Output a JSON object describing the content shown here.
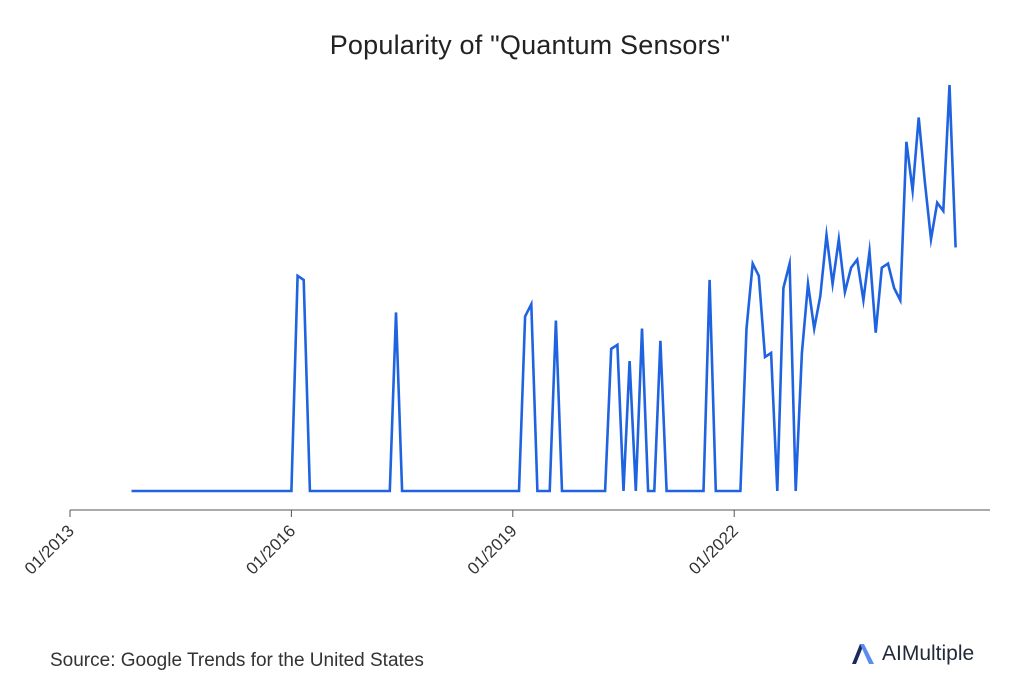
{
  "chart_data": {
    "type": "line",
    "title": "Popularity of \"Quantum Sensors\"",
    "xlabel": "",
    "ylabel": "",
    "ylim": [
      0,
      100
    ],
    "grid": false,
    "legend": "none",
    "x_ticks": [
      "01/2013",
      "01/2016",
      "01/2019",
      "01/2022"
    ],
    "x_tick_index": [
      0,
      36,
      72,
      108
    ],
    "series": [
      {
        "name": "Quantum Sensors",
        "color": "#1f63e0",
        "start_month": "11/2013",
        "values": [
          0,
          0,
          0,
          0,
          0,
          0,
          0,
          0,
          0,
          0,
          0,
          0,
          0,
          0,
          0,
          0,
          0,
          0,
          0,
          0,
          0,
          0,
          0,
          0,
          0,
          0,
          0,
          53,
          52,
          0,
          0,
          0,
          0,
          0,
          0,
          0,
          0,
          0,
          0,
          0,
          0,
          0,
          0,
          44,
          0,
          0,
          0,
          0,
          0,
          0,
          0,
          0,
          0,
          0,
          0,
          0,
          0,
          0,
          0,
          0,
          0,
          0,
          0,
          0,
          43,
          46,
          0,
          0,
          0,
          42,
          0,
          0,
          0,
          0,
          0,
          0,
          0,
          0,
          35,
          36,
          0,
          32,
          0,
          40,
          0,
          0,
          37,
          0,
          0,
          0,
          0,
          0,
          0,
          0,
          52,
          0,
          0,
          0,
          0,
          0,
          40,
          56,
          53,
          33,
          34,
          0,
          50,
          56,
          0,
          34,
          51,
          40,
          48,
          63,
          51,
          62,
          49,
          55,
          57,
          47,
          59,
          39,
          55,
          56,
          50,
          47,
          86,
          74,
          92,
          76,
          62,
          71,
          69,
          100,
          60
        ]
      }
    ]
  },
  "footer": {
    "source": "Source: Google Trends for the United States",
    "brand": "AIMultiple"
  },
  "colors": {
    "line": "#1f63e0",
    "axis": "#555555",
    "logo_dark": "#1b2a5e",
    "logo_light": "#5b8cf0"
  }
}
